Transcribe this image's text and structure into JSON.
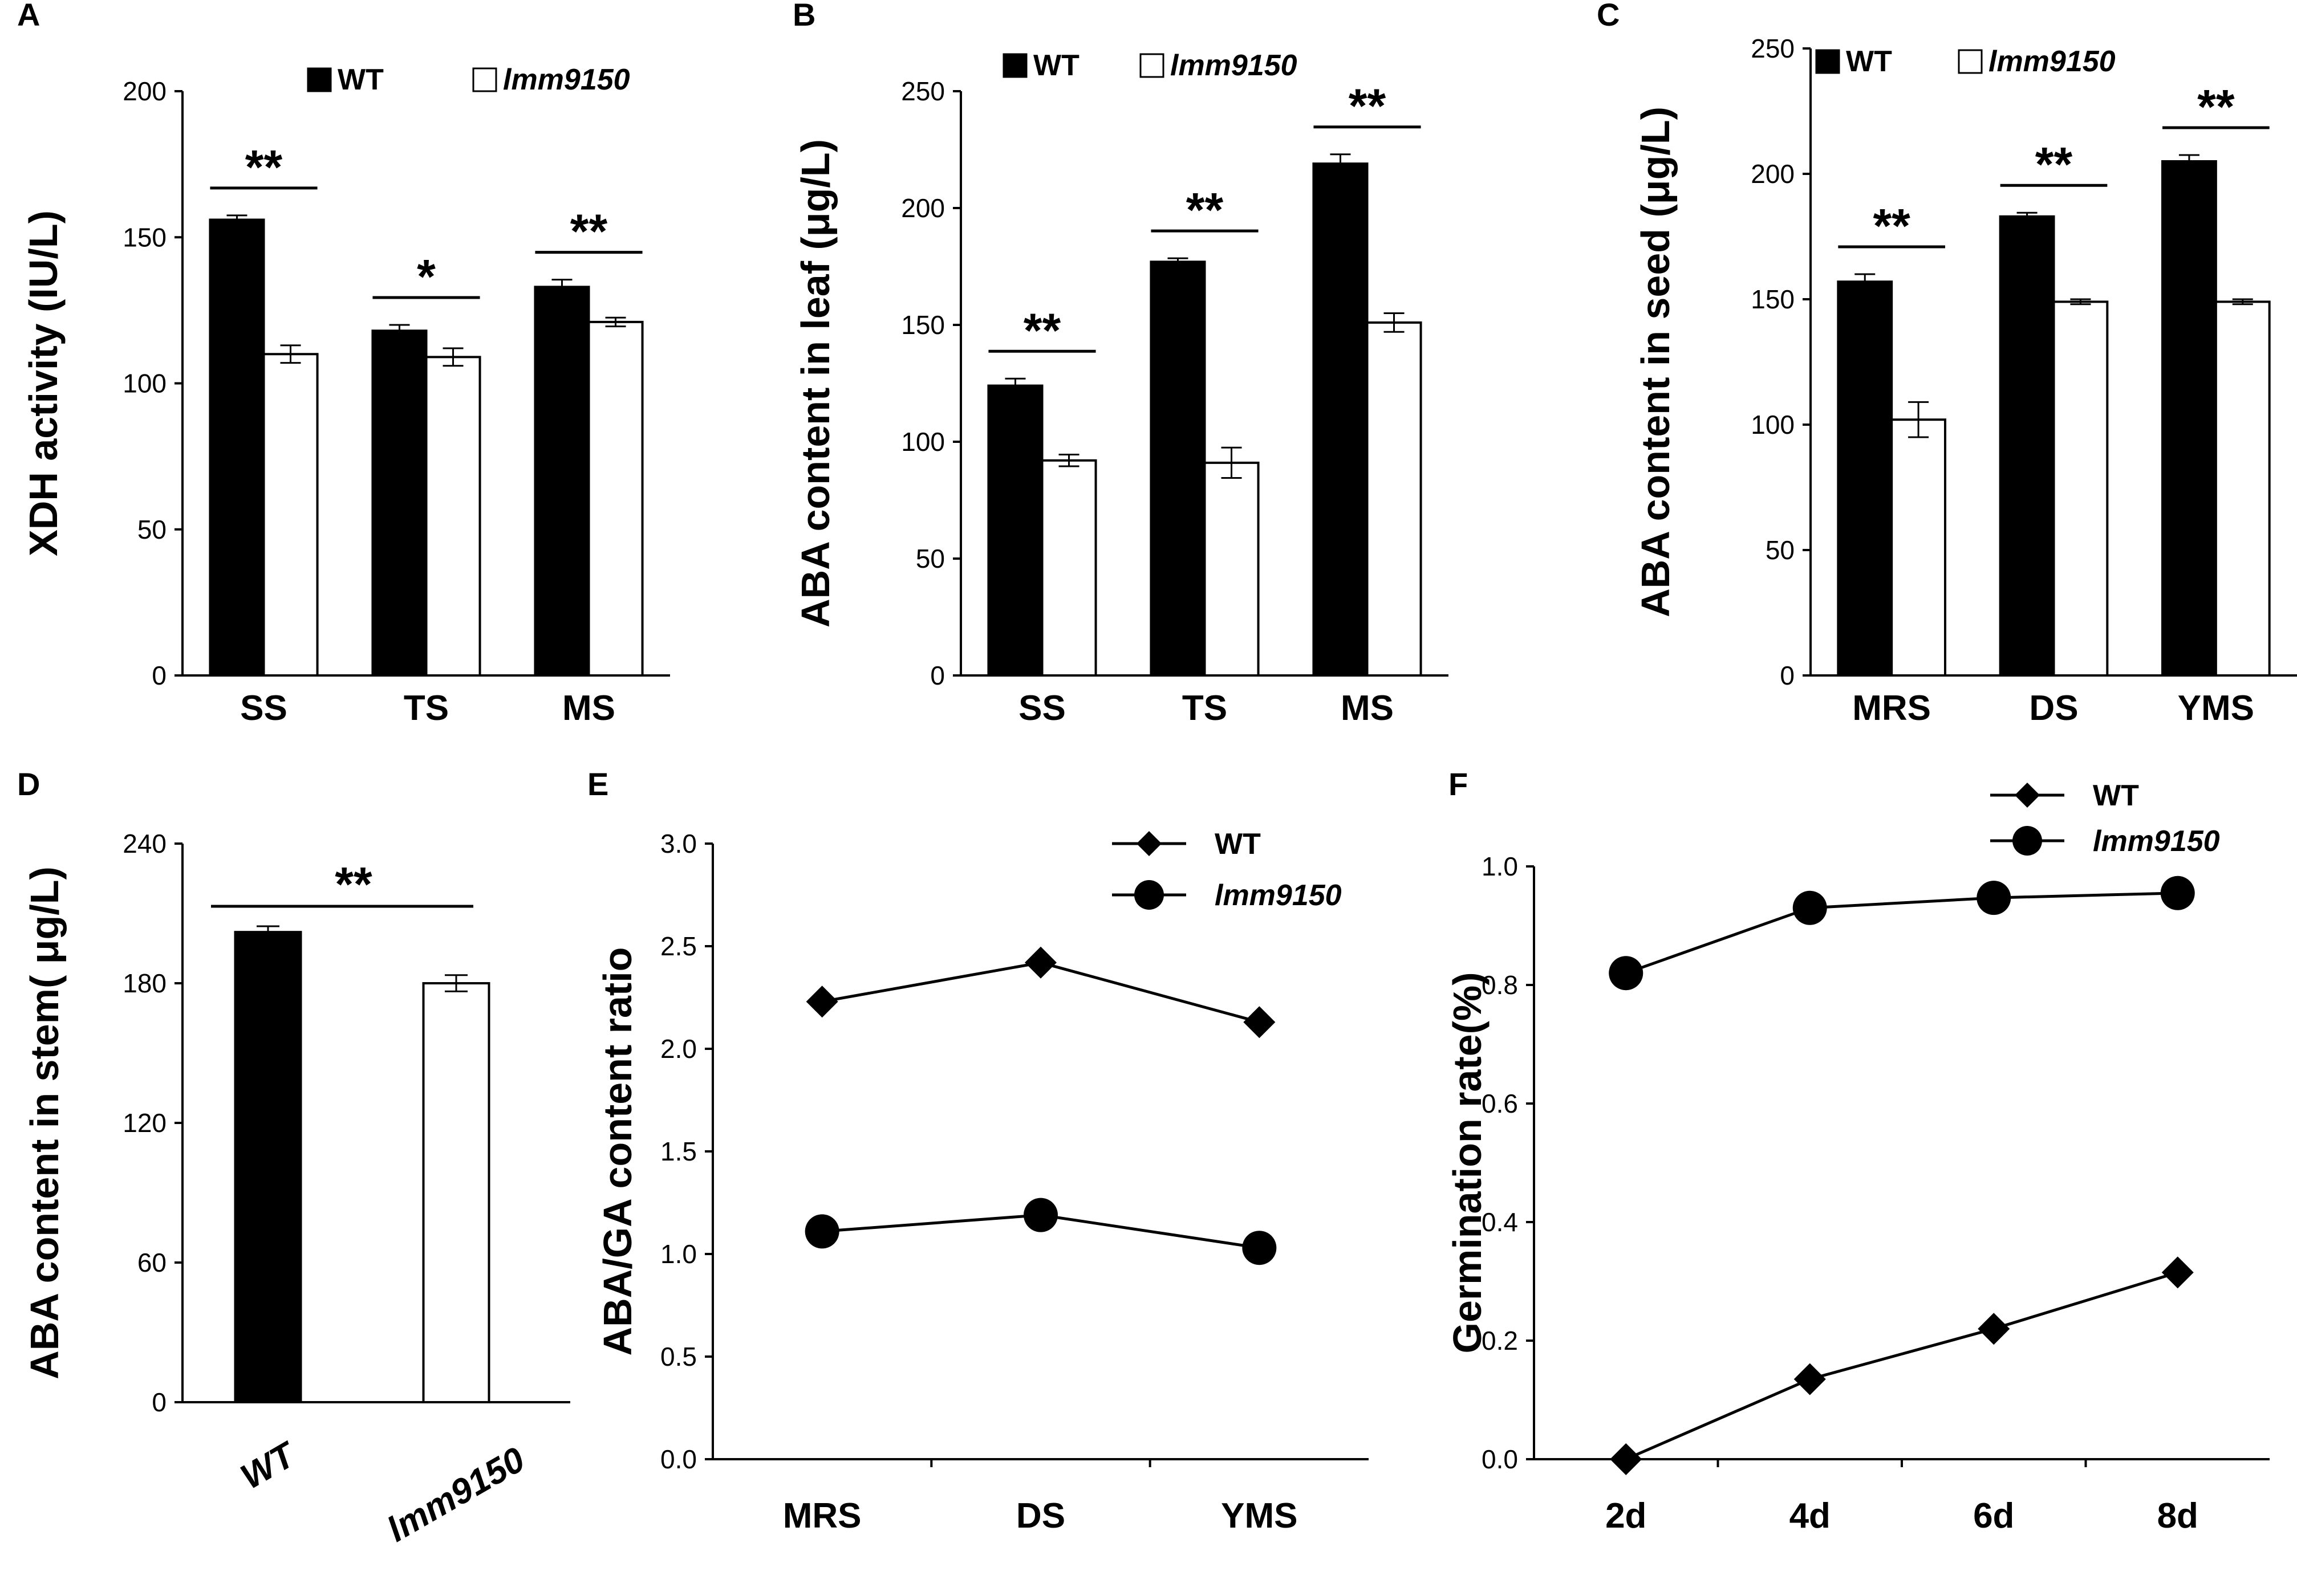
{
  "figure": "Six-panel figure of XDH activity, ABA content, ABA/GA ratio and germination rate",
  "chart_data": [
    {
      "panel": "A",
      "type": "bar",
      "ylabel": "XDH activity (IU/L)",
      "ylim": [
        0,
        200
      ],
      "yticks": [
        0,
        50,
        100,
        150,
        200
      ],
      "categories": [
        "SS",
        "TS",
        "MS"
      ],
      "series": [
        {
          "name": "WT",
          "values": [
            156,
            118,
            133
          ],
          "errors": [
            1.5,
            2,
            2.5
          ],
          "color": "#000000"
        },
        {
          "name": "lmm9150",
          "values": [
            110,
            109,
            121
          ],
          "errors": [
            3,
            3,
            1.5
          ],
          "color": "#ffffff"
        }
      ],
      "significance": [
        "**",
        "*",
        "**"
      ]
    },
    {
      "panel": "B",
      "type": "bar",
      "ylabel": "ABA content in leaf (μg/L)",
      "ylim": [
        0,
        250
      ],
      "yticks": [
        0,
        50,
        100,
        150,
        200,
        250
      ],
      "categories": [
        "SS",
        "TS",
        "MS"
      ],
      "series": [
        {
          "name": "WT",
          "values": [
            124,
            177,
            219
          ],
          "errors": [
            3,
            1.5,
            4
          ],
          "color": "#000000"
        },
        {
          "name": "lmm9150",
          "values": [
            92,
            91,
            151
          ],
          "errors": [
            2.5,
            6.5,
            4
          ],
          "color": "#ffffff"
        }
      ],
      "significance": [
        "**",
        "**",
        "**"
      ]
    },
    {
      "panel": "C",
      "type": "bar",
      "ylabel": "ABA content in seed (μg/L)",
      "ylim": [
        0,
        250
      ],
      "yticks": [
        0,
        50,
        100,
        150,
        200,
        250
      ],
      "categories": [
        "MRS",
        "DS",
        "YMS"
      ],
      "series": [
        {
          "name": "WT",
          "values": [
            157,
            183,
            205
          ],
          "errors": [
            3,
            1.5,
            2.5
          ],
          "color": "#000000"
        },
        {
          "name": "lmm9150",
          "values": [
            102,
            149,
            149
          ],
          "errors": [
            7,
            1,
            1
          ],
          "color": "#ffffff"
        }
      ],
      "significance": [
        "**",
        "**",
        "**"
      ]
    },
    {
      "panel": "D",
      "type": "bar",
      "ylabel": "ABA content in stem( μg/L)",
      "ylim": [
        0,
        240
      ],
      "yticks": [
        0,
        60,
        120,
        180,
        240
      ],
      "categories": [
        "WT",
        "lmm9150"
      ],
      "values": [
        202,
        180
      ],
      "errors": [
        2.5,
        3.5
      ],
      "colors": [
        "#000000",
        "#ffffff"
      ],
      "significance": [
        "**"
      ]
    },
    {
      "panel": "E",
      "type": "line",
      "ylabel": "ABA/GA content ratio",
      "ylim": [
        0,
        3
      ],
      "yticks": [
        "0.0",
        "0.5",
        "1.0",
        "1.5",
        "2.0",
        "2.5",
        "3.0"
      ],
      "categories": [
        "MRS",
        "DS",
        "YMS"
      ],
      "series": [
        {
          "name": "WT",
          "marker": "diamond",
          "values": [
            2.23,
            2.42,
            2.13
          ]
        },
        {
          "name": "lmm9150",
          "marker": "circle",
          "values": [
            1.11,
            1.19,
            1.03
          ]
        }
      ]
    },
    {
      "panel": "F",
      "type": "line",
      "ylabel": "Germination rate(%)",
      "ylim": [
        0,
        1
      ],
      "yticks": [
        "0.0",
        "0.2",
        "0.4",
        "0.6",
        "0.8",
        "1.0"
      ],
      "categories": [
        "2d",
        "4d",
        "6d",
        "8d"
      ],
      "series": [
        {
          "name": "WT",
          "marker": "diamond",
          "values": [
            0.0,
            0.135,
            0.22,
            0.315
          ]
        },
        {
          "name": "lmm9150",
          "marker": "circle",
          "values": [
            0.82,
            0.93,
            0.947,
            0.955
          ]
        }
      ]
    }
  ]
}
